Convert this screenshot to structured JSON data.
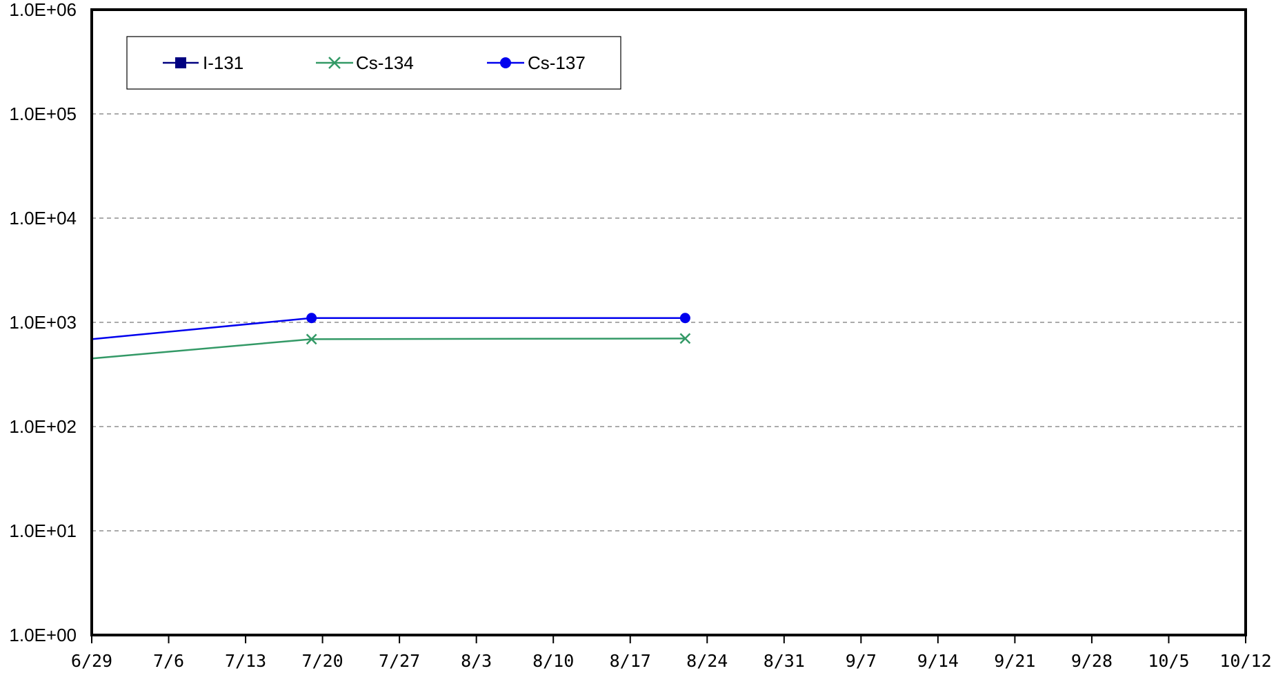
{
  "chart_data": {
    "type": "line",
    "title": "",
    "xlabel": "",
    "ylabel": "",
    "y_scale": "log",
    "ylim": [
      1,
      1000000
    ],
    "y_ticks": [
      1,
      10,
      100,
      1000,
      10000,
      100000,
      1000000
    ],
    "y_tick_labels": [
      "1.0E+00",
      "1.0E+01",
      "1.0E+02",
      "1.0E+03",
      "1.0E+04",
      "1.0E+05",
      "1.0E+06"
    ],
    "xlim": [
      "2011-06-29",
      "2011-10-12"
    ],
    "x_ticks": [
      "2011-06-29",
      "2011-07-06",
      "2011-07-13",
      "2011-07-20",
      "2011-07-27",
      "2011-08-03",
      "2011-08-10",
      "2011-08-17",
      "2011-08-24",
      "2011-08-31",
      "2011-09-07",
      "2011-09-14",
      "2011-09-21",
      "2011-09-28",
      "2011-10-05",
      "2011-10-12"
    ],
    "x_tick_labels": [
      "6/29",
      "7/6",
      "7/13",
      "7/20",
      "7/27",
      "8/3",
      "8/10",
      "8/17",
      "8/24",
      "8/31",
      "9/7",
      "9/14",
      "9/21",
      "9/28",
      "10/5",
      "10/12"
    ],
    "grid": "horizontal-dashed",
    "legend_position": "top-left",
    "series": [
      {
        "name": "I-131",
        "color": "#000080",
        "marker": "square",
        "x": [],
        "y": []
      },
      {
        "name": "Cs-134",
        "color": "#339966",
        "marker": "x",
        "x": [
          "2011-06-29",
          "2011-07-19",
          "2011-08-22"
        ],
        "y": [
          450,
          690,
          700
        ]
      },
      {
        "name": "Cs-137",
        "color": "#0000ee",
        "marker": "circle",
        "x": [
          "2011-06-29",
          "2011-07-19",
          "2011-08-22"
        ],
        "y": [
          690,
          1100,
          1100
        ]
      }
    ]
  }
}
